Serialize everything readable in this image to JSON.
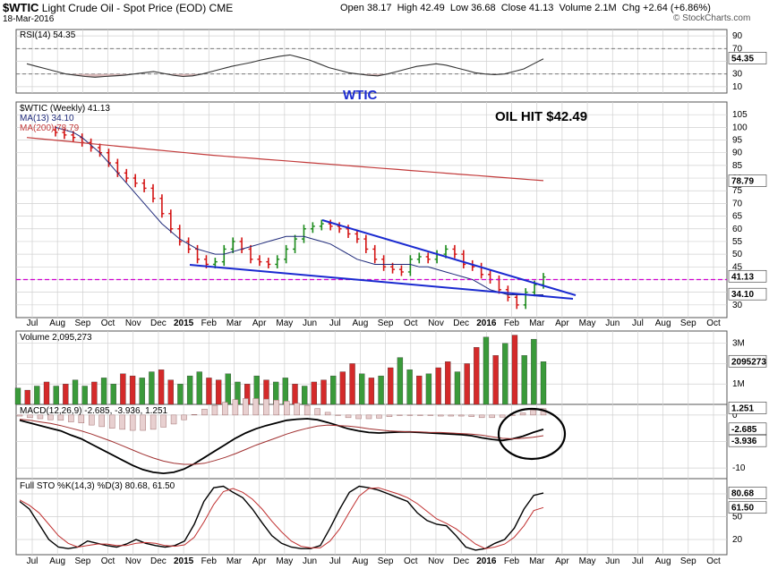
{
  "header": {
    "symbol": "$WTIC",
    "name": "Light Crude Oil - Spot Price (EOD)",
    "exchange": "CME",
    "date": "18-Mar-2016",
    "watermark": "© StockCharts.com",
    "quote": {
      "open_label": "Open",
      "open": "38.17",
      "high_label": "High",
      "high": "42.49",
      "low_label": "Low",
      "low": "36.68",
      "close_label": "Close",
      "close": "41.13",
      "volume_label": "Volume",
      "volume": "2.1M",
      "chg_label": "Chg",
      "chg": "+2.64 (+6.86%)"
    }
  },
  "annotations": {
    "wtic": "WTIC",
    "oil_hit": "OIL HIT $42.49"
  },
  "colors": {
    "up": "#1a8a1a",
    "down": "#d41414",
    "ma13": "#1f2a7a",
    "ma200": "#c23a3a",
    "trend": "#1a2ad0",
    "dash": "#d000d0",
    "grid": "#d0d0d0"
  },
  "chart_data": [
    {
      "type": "line",
      "panel": "rsi",
      "legend": "RSI(14) 54.35",
      "ylim": [
        0,
        100
      ],
      "ticks": [
        10,
        30,
        50,
        70,
        90
      ],
      "badge": "54.35",
      "values": [
        46,
        42,
        38,
        34,
        30,
        28,
        26,
        25,
        26,
        27,
        28,
        30,
        32,
        34,
        31,
        28,
        26,
        27,
        30,
        34,
        38,
        42,
        45,
        48,
        52,
        55,
        58,
        60,
        56,
        52,
        46,
        40,
        36,
        32,
        30,
        28,
        27,
        30,
        34,
        38,
        42,
        44,
        46,
        44,
        40,
        36,
        32,
        30,
        29,
        30,
        34,
        38,
        46,
        54
      ]
    },
    {
      "type": "line",
      "panel": "price",
      "legend": [
        "$WTIC (Weekly) 41.13",
        "MA(13) 34.10",
        "MA(200) 78.79"
      ],
      "ylim": [
        25,
        110
      ],
      "ticks": [
        30,
        35,
        40,
        45,
        50,
        55,
        60,
        65,
        70,
        75,
        80,
        85,
        90,
        95,
        100,
        105
      ],
      "badges": [
        "78.79",
        "41.13",
        "34.10"
      ],
      "closes": [
        98,
        97,
        96,
        94,
        92,
        90,
        86,
        82,
        80,
        78,
        76,
        72,
        66,
        60,
        55,
        52,
        48,
        46,
        47,
        52,
        55,
        52,
        48,
        47,
        46,
        48,
        52,
        56,
        60,
        61,
        62,
        61,
        60,
        58,
        56,
        52,
        48,
        45,
        44,
        43,
        48,
        49,
        48,
        50,
        52,
        50,
        46,
        45,
        42,
        40,
        36,
        33,
        30,
        35,
        38,
        41
      ],
      "ma13": [
        100,
        99,
        98,
        96,
        93,
        90,
        86,
        82,
        78,
        74,
        70,
        66,
        62,
        59,
        56,
        54,
        52,
        51,
        50,
        50,
        51,
        52,
        53,
        54,
        55,
        56,
        57,
        57,
        57,
        56,
        55,
        54,
        52,
        50,
        48,
        47,
        46,
        46,
        46,
        46,
        46,
        45,
        45,
        44,
        43,
        42,
        41,
        40,
        38,
        36,
        35,
        34,
        34,
        34,
        34,
        34
      ],
      "ma200": [
        96,
        95.5,
        95,
        94.5,
        94,
        93.5,
        93,
        92.5,
        92,
        91.5,
        91,
        90.5,
        90,
        89.5,
        89,
        88.6,
        88.2,
        87.8,
        87.4,
        87,
        86.6,
        86.2,
        85.8,
        85.4,
        85,
        84.6,
        84.2,
        83.8,
        83.4,
        83,
        82.6,
        82.2,
        81.8,
        81.4,
        81,
        80.6,
        80.2,
        79.8,
        79.4,
        79
      ]
    },
    {
      "type": "bar",
      "panel": "volume",
      "legend": "Volume 2,095,273",
      "ylim": [
        0,
        3600000
      ],
      "ticks_labels": [
        "1M",
        "2M",
        "3M"
      ],
      "ticks": [
        1000000,
        2000000,
        3000000
      ],
      "badge": "2095273",
      "values": [
        800000,
        700000,
        900000,
        1100000,
        900000,
        1000000,
        1200000,
        900000,
        1100000,
        1300000,
        1000000,
        1500000,
        1400000,
        1300000,
        1600000,
        1700000,
        1200000,
        1000000,
        1400000,
        1600000,
        1300000,
        1200000,
        1500000,
        1100000,
        1000000,
        1400000,
        1200000,
        1100000,
        1300000,
        1000000,
        900000,
        1100000,
        1200000,
        1400000,
        1600000,
        2000000,
        1500000,
        1300000,
        1400000,
        1800000,
        2300000,
        1700000,
        1400000,
        1500000,
        1800000,
        2100000,
        1600000,
        2000000,
        2800000,
        3300000,
        2400000,
        3000000,
        3400000,
        2400000,
        3200000,
        2100000
      ],
      "up": [
        true,
        false,
        true,
        false,
        true,
        false,
        true,
        true,
        false,
        true,
        true,
        false,
        false,
        true,
        true,
        false,
        false,
        true,
        true,
        true,
        false,
        false,
        true,
        true,
        false,
        true,
        false,
        true,
        true,
        false,
        true,
        false,
        false,
        true,
        false,
        false,
        true,
        false,
        true,
        false,
        true,
        true,
        false,
        true,
        false,
        false,
        true,
        false,
        false,
        true,
        false,
        true,
        false,
        true,
        true,
        true
      ]
    },
    {
      "type": "line",
      "panel": "macd",
      "legend": "MACD(12,26,9) -2.685, -3.936, 1.251",
      "ylim": [
        -12,
        2
      ],
      "ticks": [
        -10,
        -5,
        0
      ],
      "badges": [
        "1.251",
        "-2.685",
        "-3.936"
      ],
      "macd": [
        -1,
        -1.5,
        -2,
        -2.5,
        -3,
        -3.8,
        -4.5,
        -5.5,
        -6.5,
        -7.5,
        -8.5,
        -9.5,
        -10.3,
        -10.8,
        -11,
        -10.8,
        -10.2,
        -9.2,
        -8,
        -6.8,
        -5.6,
        -4.4,
        -3.4,
        -2.6,
        -2,
        -1.5,
        -1,
        -0.8,
        -0.7,
        -0.9,
        -1.4,
        -2,
        -2.6,
        -3,
        -3.3,
        -3.4,
        -3.3,
        -3.2,
        -3.2,
        -3.3,
        -3.4,
        -3.5,
        -3.6,
        -3.7,
        -3.9,
        -4.3,
        -4.6,
        -4.8,
        -4.5,
        -4,
        -3.3,
        -2.7
      ],
      "signal": [
        -0.8,
        -1,
        -1.3,
        -1.6,
        -2,
        -2.5,
        -3,
        -3.6,
        -4.3,
        -5,
        -5.8,
        -6.6,
        -7.4,
        -8.1,
        -8.7,
        -9.1,
        -9.3,
        -9.3,
        -9.1,
        -8.6,
        -8,
        -7.3,
        -6.5,
        -5.7,
        -5,
        -4.3,
        -3.6,
        -3,
        -2.5,
        -2.1,
        -1.9,
        -2,
        -2.1,
        -2.3,
        -2.6,
        -2.8,
        -3,
        -3.1,
        -3.2,
        -3.2,
        -3.3,
        -3.3,
        -3.4,
        -3.5,
        -3.6,
        -3.8,
        -4.1,
        -4.4,
        -4.5,
        -4.4,
        -4.2,
        -3.9
      ]
    },
    {
      "type": "line",
      "panel": "sto",
      "legend": "Full STO %K(14,3) %D(3) 80.68, 61.50",
      "ylim": [
        0,
        100
      ],
      "ticks": [
        20,
        50,
        80
      ],
      "badges": [
        "80.68",
        "61.50"
      ],
      "k": [
        70,
        60,
        40,
        20,
        10,
        8,
        10,
        18,
        15,
        12,
        10,
        14,
        20,
        15,
        12,
        10,
        12,
        18,
        40,
        70,
        88,
        90,
        82,
        75,
        60,
        42,
        25,
        15,
        10,
        8,
        8,
        12,
        35,
        60,
        82,
        90,
        88,
        85,
        80,
        75,
        70,
        55,
        45,
        40,
        38,
        25,
        10,
        6,
        8,
        15,
        20,
        35,
        60,
        78,
        81
      ],
      "d": [
        72,
        65,
        55,
        40,
        25,
        15,
        10,
        12,
        14,
        14,
        12,
        12,
        15,
        16,
        15,
        12,
        11,
        13,
        23,
        43,
        66,
        83,
        87,
        82,
        73,
        60,
        44,
        30,
        18,
        11,
        9,
        9,
        18,
        34,
        56,
        77,
        87,
        88,
        84,
        80,
        75,
        67,
        57,
        47,
        41,
        34,
        24,
        14,
        8,
        10,
        14,
        23,
        38,
        58,
        62
      ]
    }
  ],
  "x_axis": {
    "months": [
      "Jul",
      "Aug",
      "Sep",
      "Oct",
      "Nov",
      "Dec",
      "2015",
      "Feb",
      "Mar",
      "Apr",
      "May",
      "Jun",
      "Jul",
      "Aug",
      "Sep",
      "Oct",
      "Nov",
      "Dec",
      "2016",
      "Feb",
      "Mar",
      "Apr",
      "May",
      "Jun",
      "Jul",
      "Aug",
      "Sep",
      "Oct"
    ]
  }
}
